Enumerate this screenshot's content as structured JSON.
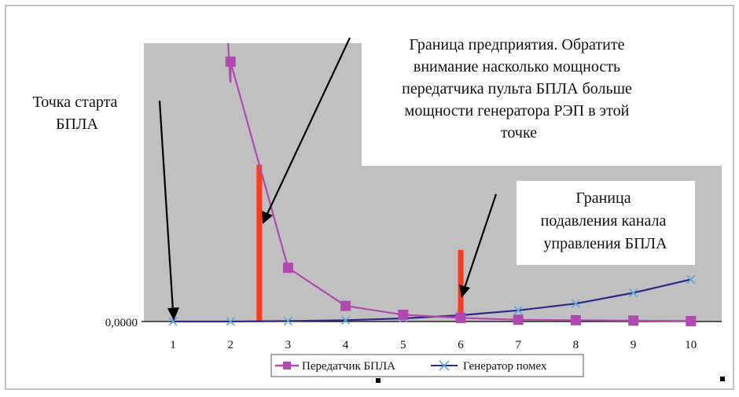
{
  "chart_data": {
    "type": "line",
    "categories": [
      "1",
      "2",
      "3",
      "4",
      "5",
      "6",
      "7",
      "8",
      "9",
      "10"
    ],
    "y_tick_label": "0,0000",
    "grid": false,
    "legend_position": "bottom",
    "series": [
      {
        "name": "Передатчик БПЛА",
        "color": "#b04ab0",
        "marker": "square",
        "values": [
          null,
          0.58,
          0.12,
          0.035,
          0.015,
          0.008,
          0.004,
          0.003,
          0.002,
          0.001
        ]
      },
      {
        "name": "Генератор помех",
        "color": "#2e2a8a",
        "marker": "x",
        "values": [
          0.0,
          0.0,
          0.001,
          0.003,
          0.007,
          0.014,
          0.025,
          0.04,
          0.064,
          0.094
        ]
      }
    ],
    "markers": [
      {
        "x": 2.5,
        "value": 0.35,
        "color": "#ff3b1f"
      },
      {
        "x": 6.0,
        "value": 0.16,
        "color": "#ff3b1f"
      }
    ],
    "annotations": {
      "start": {
        "lines": [
          "Точка старта",
          "БПЛА"
        ]
      },
      "enterprise": {
        "lines": [
          "Граница предприятия. Обратите",
          "внимание насколько мощность",
          "передатчика пульта БПЛА больше",
          "мощности генератора РЭП в этой",
          "точке"
        ]
      },
      "suppression": {
        "lines": [
          "Граница",
          "подавления канала",
          "управления БПЛА"
        ]
      }
    }
  }
}
